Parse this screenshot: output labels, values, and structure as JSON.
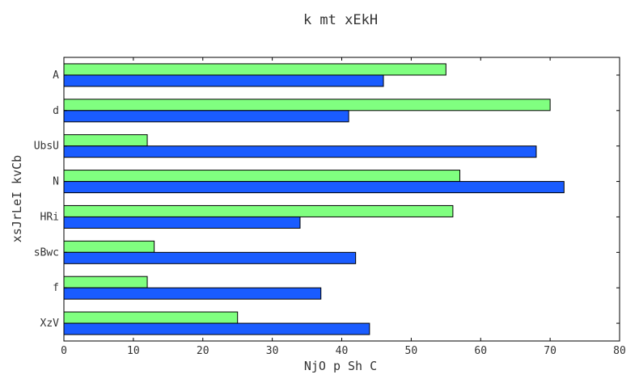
{
  "chart_data": {
    "type": "bar",
    "orientation": "horizontal",
    "title": "k mt xEkH",
    "xlabel": "NjO p Sh C",
    "ylabel": "xsJrLeI kvCb",
    "categories": [
      "A",
      "d",
      "UbsU",
      "N",
      "HRi",
      "sBwc",
      "f",
      "XzV"
    ],
    "series": [
      {
        "color": "#80ff80",
        "values": [
          55,
          70,
          12,
          57,
          56,
          13,
          12,
          25
        ]
      },
      {
        "color": "#1a5cff",
        "values": [
          46,
          41,
          68,
          72,
          34,
          42,
          37,
          44
        ]
      }
    ],
    "xlim": [
      0,
      80
    ],
    "xticks": [
      0,
      10,
      20,
      30,
      40,
      50,
      60,
      70,
      80
    ],
    "grid": false,
    "legend": "none"
  }
}
